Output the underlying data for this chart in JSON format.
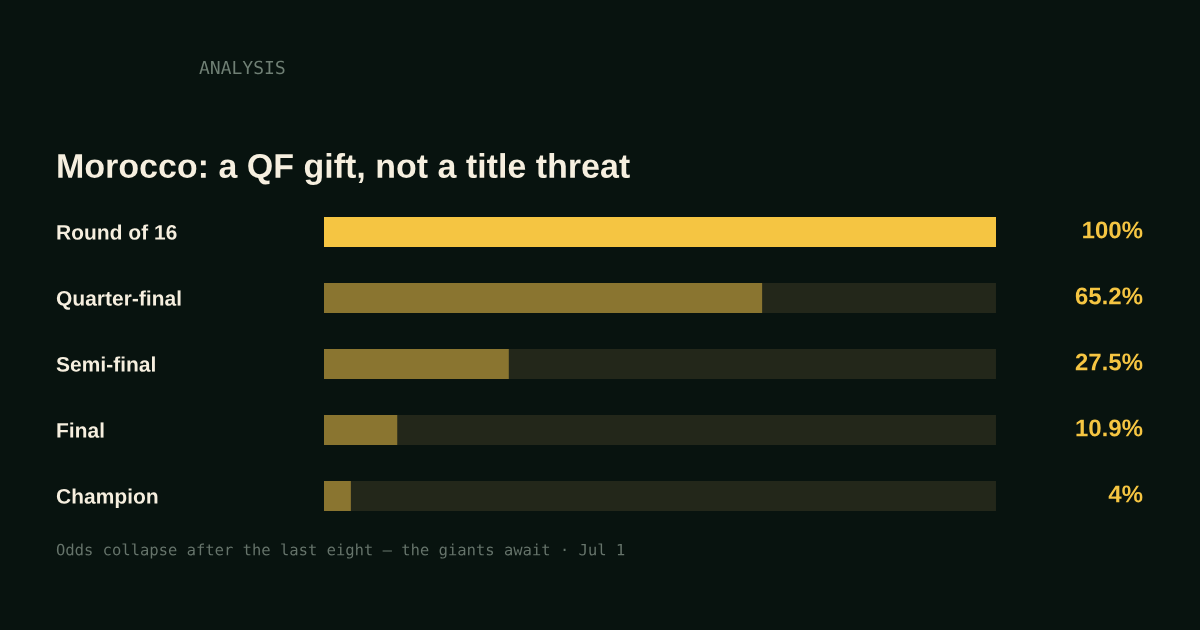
{
  "chart_data": {
    "type": "bar",
    "orientation": "horizontal",
    "title": "Morocco: a QF gift, not a title threat",
    "annotations": [
      "ANALYSIS",
      "Odds collapse after the last eight — the giants await · Jul 1"
    ],
    "categories": [
      "Round of 16",
      "Quarter-final",
      "Semi-final",
      "Final",
      "Champion"
    ],
    "values": [
      100,
      65.2,
      27.5,
      10.9,
      4
    ],
    "colors": [
      "#f5c542",
      "#8a7530",
      "#8a7530",
      "#8a7530",
      "#8a7530"
    ],
    "value_labels": [
      "100%",
      "65.2%",
      "27.5%",
      "10.9%",
      "4%"
    ],
    "xlim": [
      0,
      100
    ],
    "tick_labels": "y",
    "grid": false,
    "legend": false
  }
}
